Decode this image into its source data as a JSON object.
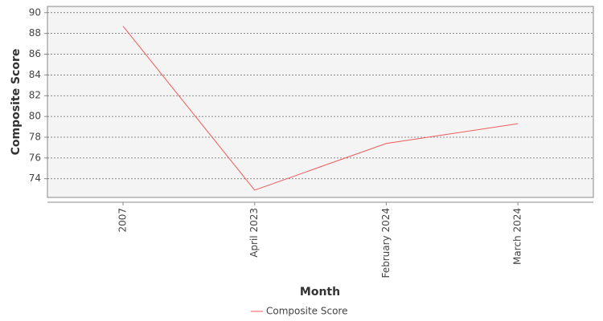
{
  "chart_data": {
    "type": "line",
    "x_label": "Month",
    "y_label": "Composite Score",
    "categories": [
      "2007",
      "April 2023",
      "February 2024",
      "March 2024"
    ],
    "series": [
      {
        "name": "Composite Score",
        "color": "#f05a5a",
        "values": [
          88.7,
          72.9,
          77.4,
          79.3
        ]
      }
    ],
    "ylim": [
      72.2,
      90.6
    ],
    "yticks": [
      74,
      76,
      78,
      80,
      82,
      84,
      86,
      88,
      90
    ],
    "grid": true,
    "legend": "bottom"
  }
}
